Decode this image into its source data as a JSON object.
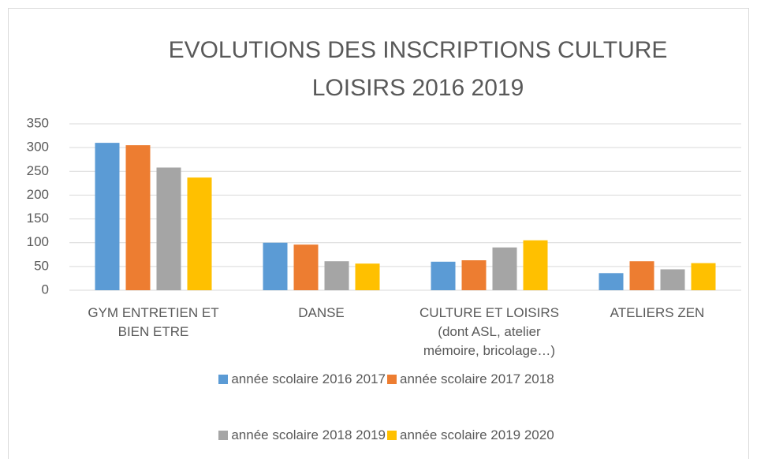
{
  "chart_data": {
    "type": "bar",
    "title": "EVOLUTIONS DES INSCRIPTIONS CULTURE LOISIRS 2016 2019",
    "categories": [
      "GYM ENTRETIEN ET BIEN ETRE",
      "DANSE",
      "CULTURE ET LOISIRS (dont ASL, atelier mémoire, bricolage…)",
      "ATELIERS ZEN"
    ],
    "series": [
      {
        "name": "année scolaire 2016 2017",
        "color": "#5b9bd5",
        "values": [
          310,
          100,
          60,
          36
        ]
      },
      {
        "name": "année scolaire 2017 2018",
        "color": "#ed7d31",
        "values": [
          305,
          96,
          63,
          61
        ]
      },
      {
        "name": "année scolaire 2018 2019",
        "color": "#a5a5a5",
        "values": [
          258,
          61,
          90,
          44
        ]
      },
      {
        "name": "année scolaire 2019 2020",
        "color": "#ffc000",
        "values": [
          237,
          56,
          105,
          57
        ]
      }
    ],
    "ylim": [
      0,
      350
    ],
    "yticks": [
      0,
      50,
      100,
      150,
      200,
      250,
      300,
      350
    ],
    "grid": true,
    "legend": "bottom"
  }
}
